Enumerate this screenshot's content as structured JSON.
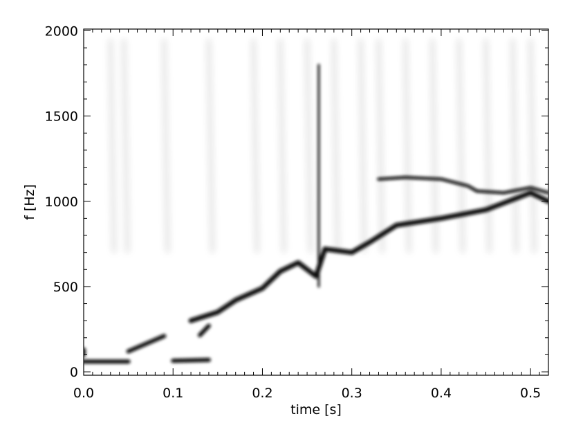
{
  "chart_data": {
    "type": "heatmap",
    "title": "",
    "xlabel": "time [s]",
    "ylabel": "f [Hz]",
    "xlim": [
      0.0,
      0.52
    ],
    "ylim": [
      -20,
      2010
    ],
    "x_ticks": [
      0.0,
      0.1,
      0.2,
      0.3,
      0.4,
      0.5
    ],
    "x_tick_labels": [
      "0.0",
      "0.1",
      "0.2",
      "0.3",
      "0.4",
      "0.5"
    ],
    "y_ticks": [
      0,
      500,
      1000,
      1500,
      2000
    ],
    "y_tick_labels": [
      "0",
      "500",
      "1000",
      "1500",
      "2000"
    ],
    "colormap": "grayscale-inverted (white = low power, black = high power)",
    "ridges": [
      {
        "description": "low-frequency bands",
        "points": [
          [
            0.0,
            60
          ],
          [
            0.05,
            60
          ],
          [
            0.1,
            65
          ],
          [
            0.14,
            70
          ],
          [
            0.0,
            100
          ],
          [
            0.0,
            130
          ],
          [
            0.05,
            120
          ],
          [
            0.09,
            210
          ],
          [
            0.13,
            215
          ],
          [
            0.14,
            270
          ]
        ]
      },
      {
        "description": "rising main ridge",
        "points": [
          [
            0.12,
            300
          ],
          [
            0.15,
            350
          ],
          [
            0.17,
            420
          ],
          [
            0.2,
            490
          ],
          [
            0.22,
            590
          ],
          [
            0.24,
            640
          ],
          [
            0.26,
            560
          ],
          [
            0.27,
            720
          ],
          [
            0.3,
            700
          ],
          [
            0.32,
            760
          ],
          [
            0.35,
            860
          ],
          [
            0.4,
            900
          ],
          [
            0.45,
            950
          ],
          [
            0.5,
            1050
          ],
          [
            0.52,
            1000
          ]
        ]
      },
      {
        "description": "upper branch",
        "points": [
          [
            0.33,
            1130
          ],
          [
            0.36,
            1140
          ],
          [
            0.4,
            1130
          ],
          [
            0.43,
            1090
          ],
          [
            0.44,
            1060
          ],
          [
            0.47,
            1050
          ],
          [
            0.5,
            1080
          ],
          [
            0.52,
            1050
          ]
        ]
      },
      {
        "description": "vertical transient",
        "points": [
          [
            0.263,
            500
          ],
          [
            0.263,
            1000
          ],
          [
            0.263,
            1800
          ]
        ]
      }
    ]
  }
}
